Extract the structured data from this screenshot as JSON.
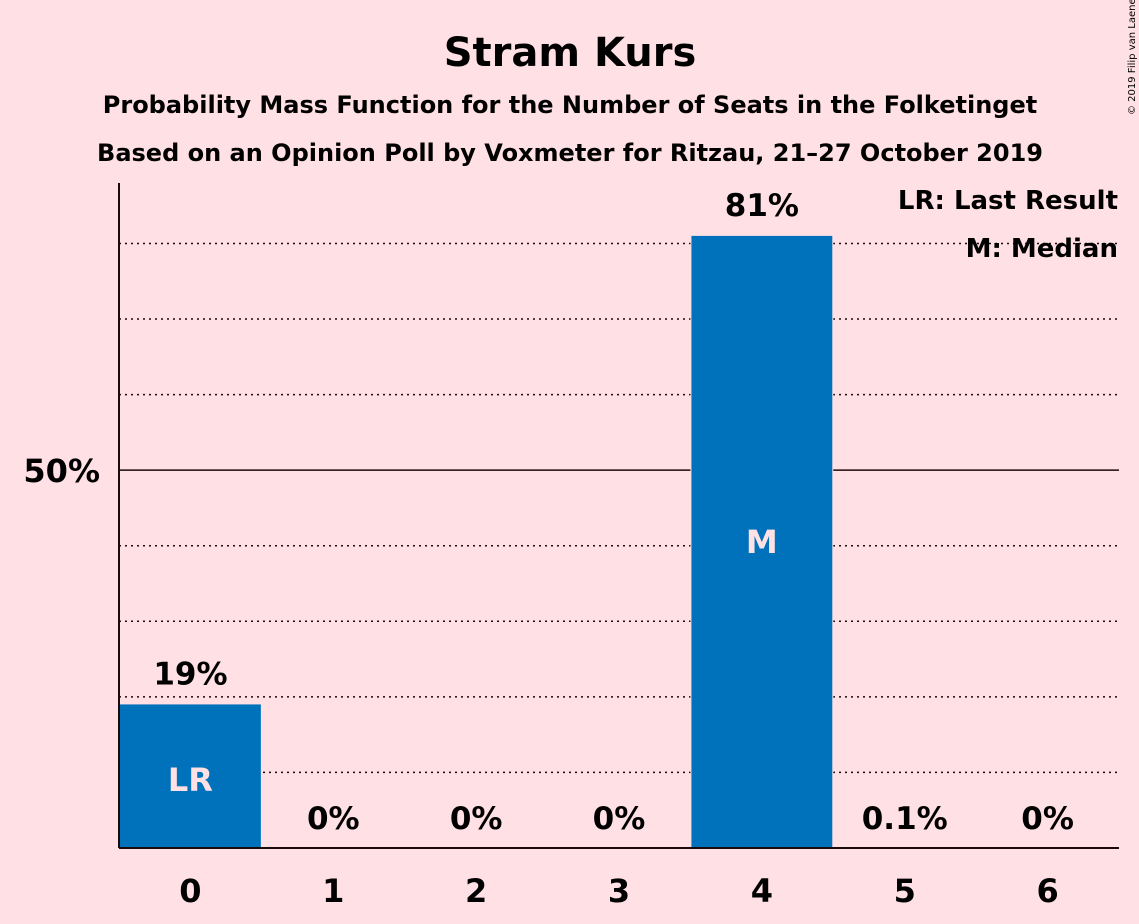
{
  "chart_data": {
    "type": "bar",
    "title": "Stram Kurs",
    "subtitle": "Probability Mass Function for the Number of Seats in the Folketinget",
    "subtitle2": "Based on an Opinion Poll by Voxmeter for Ritzau, 21–27 October 2019",
    "categories": [
      "0",
      "1",
      "2",
      "3",
      "4",
      "5",
      "6"
    ],
    "values": [
      19,
      0,
      0,
      0,
      81,
      0.1,
      0
    ],
    "value_labels": [
      "19%",
      "0%",
      "0%",
      "0%",
      "81%",
      "0.1%",
      "0%"
    ],
    "bar_markers": [
      "LR",
      "",
      "",
      "",
      "M",
      "",
      ""
    ],
    "ytick_label": "50%",
    "ylim": [
      0,
      88
    ],
    "grid": true,
    "grid_step": 10,
    "legend": [
      "LR: Last Result",
      "M: Median"
    ],
    "legend_position": "top-right",
    "credit": "© 2019 Filip van Laenen",
    "colors": {
      "bar": "#0072BC",
      "background": "#FFE0E4",
      "text": "#1a0a0a"
    }
  }
}
